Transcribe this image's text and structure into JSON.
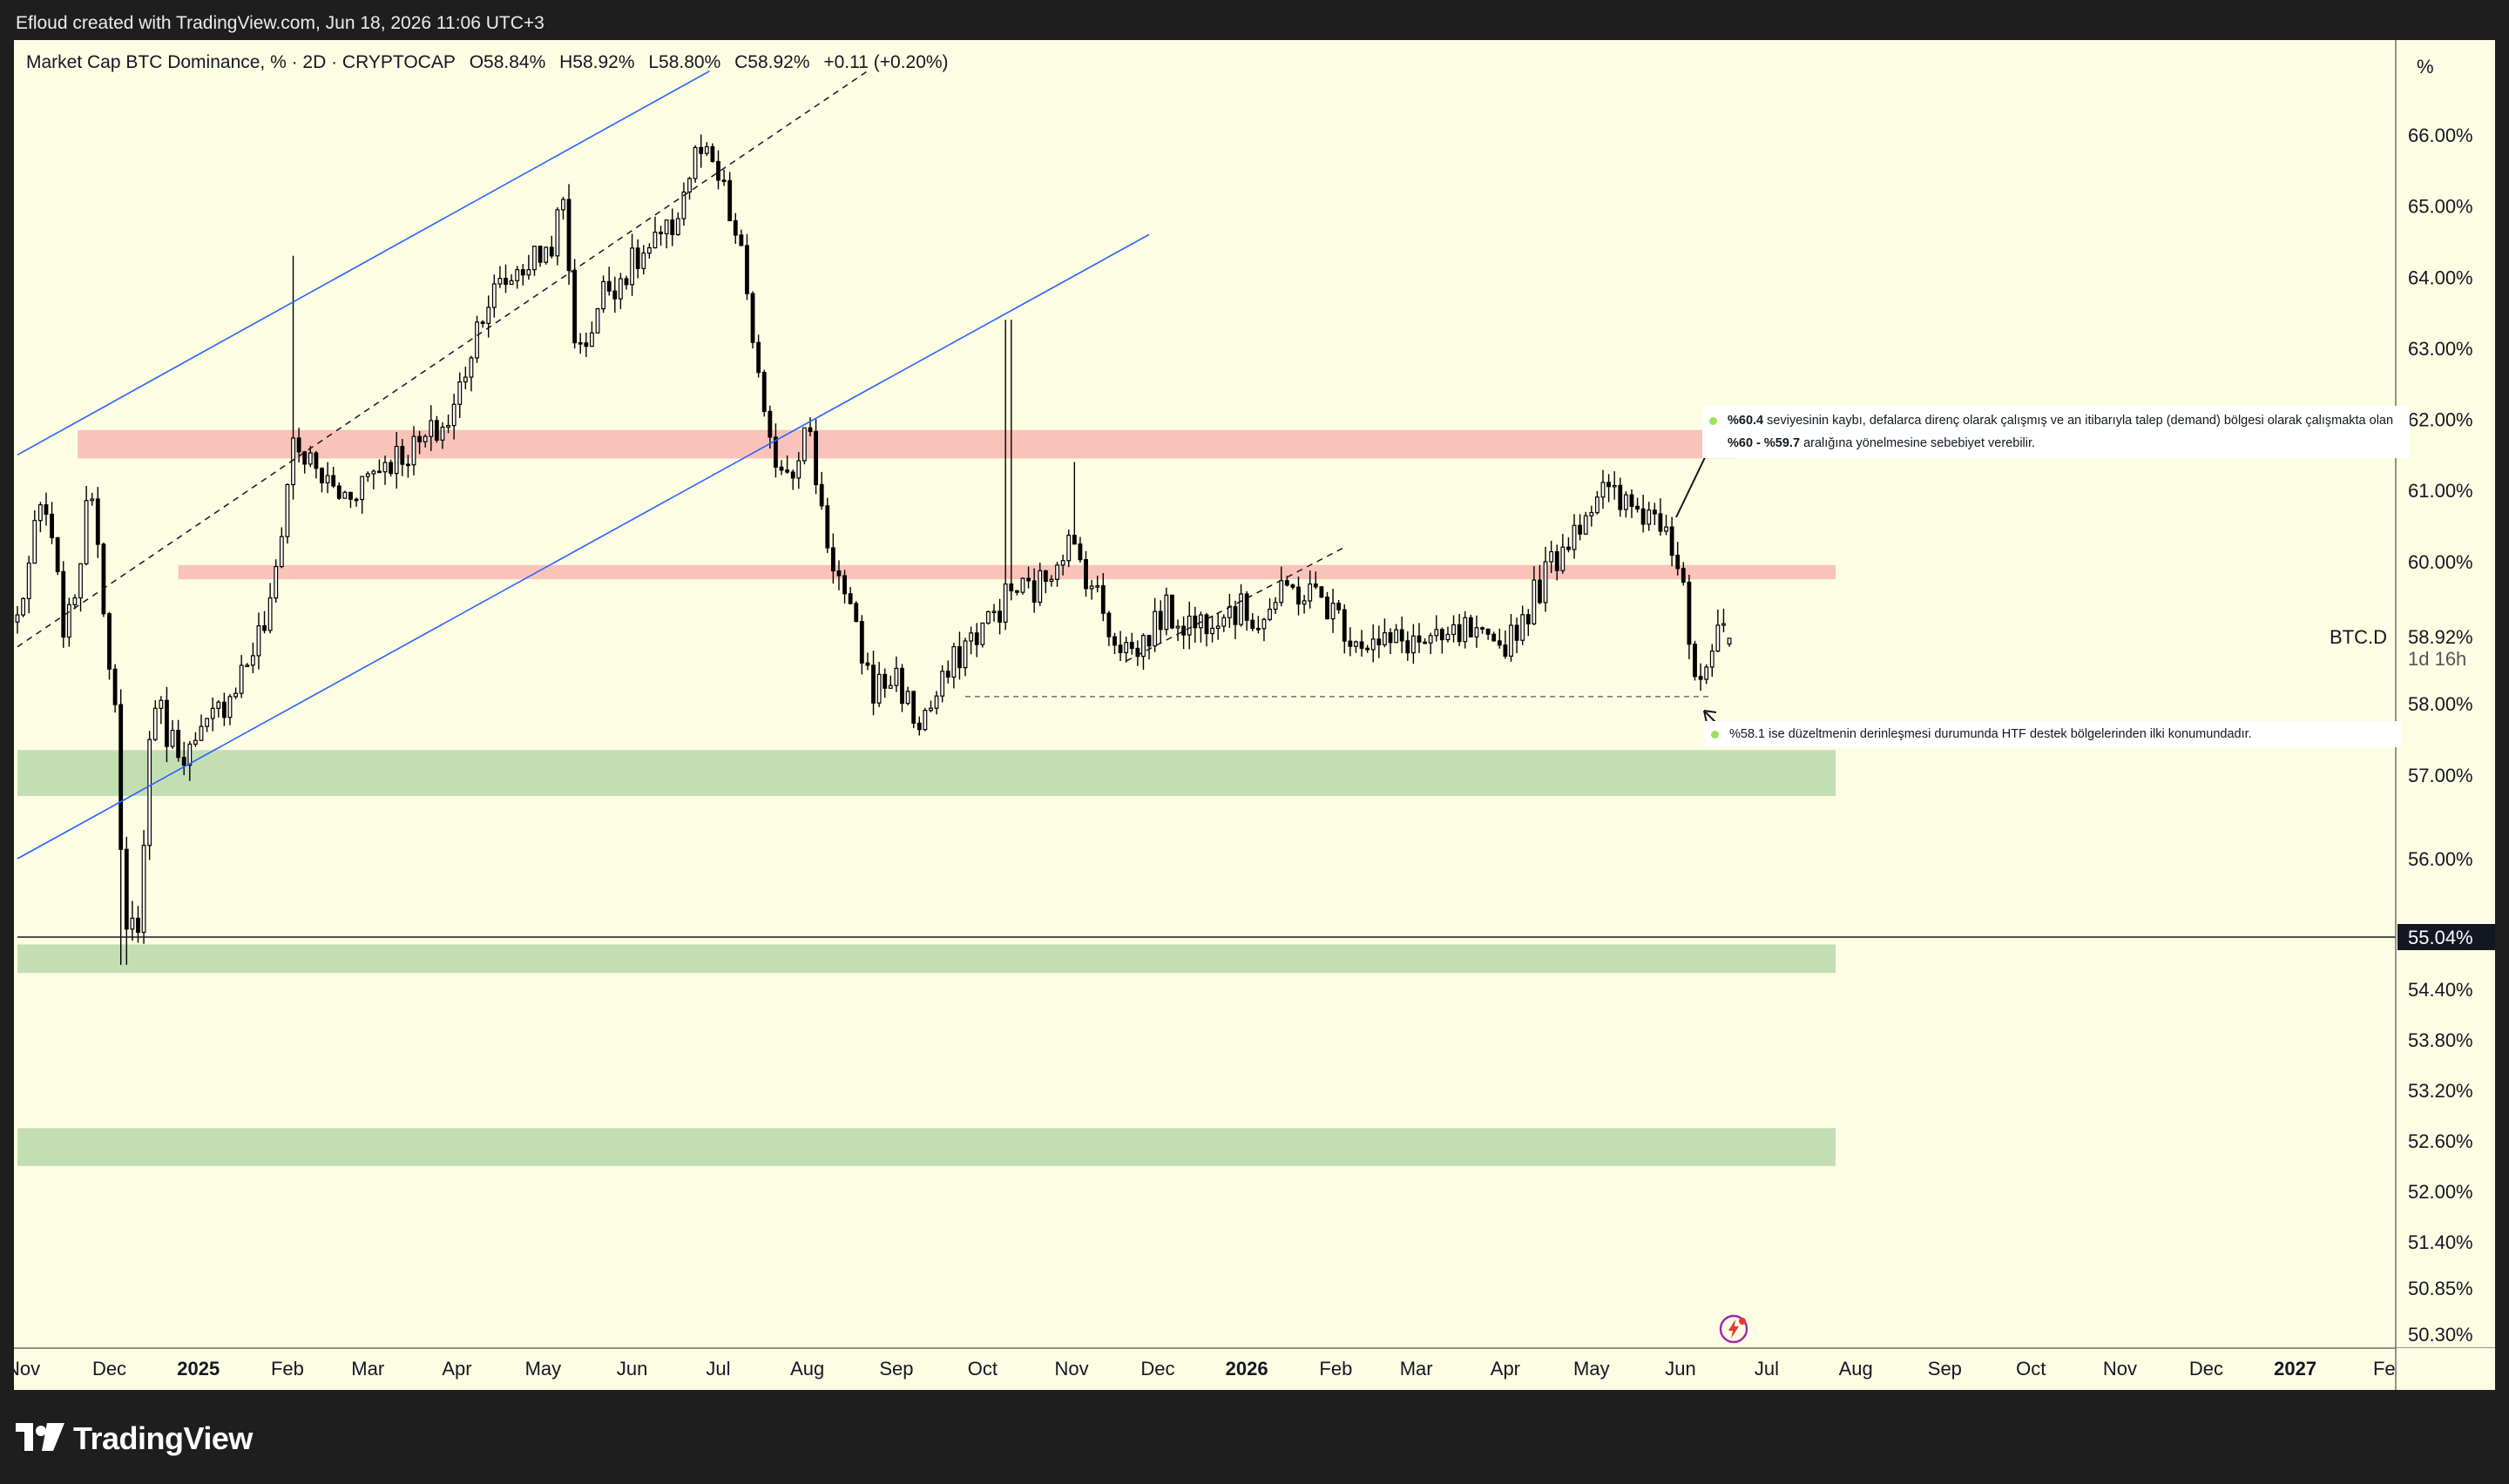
{
  "header": {
    "attribution": "Efloud created with TradingView.com, Jun 18, 2026 11:06 UTC+3"
  },
  "legend": {
    "symbol": "Market Cap BTC Dominance, % · 2D · CRYPTOCAP",
    "open": "O58.84%",
    "high": "H58.92%",
    "low": "L58.80%",
    "close": "C58.92%",
    "change": "+0.11 (+0.20%)"
  },
  "price_scale": {
    "unit": "%",
    "ticks": [
      "66.00%",
      "65.00%",
      "64.00%",
      "63.00%",
      "62.00%",
      "61.00%",
      "60.00%",
      "58.00%",
      "57.00%",
      "56.00%",
      "54.40%",
      "53.80%",
      "53.20%",
      "52.60%",
      "52.00%",
      "51.40%",
      "50.85%",
      "50.30%"
    ],
    "last_price": "58.92%",
    "symbol_tag": "BTC.D",
    "countdown": "1d 16h",
    "crosshair_price": "55.04%"
  },
  "time_axis": {
    "labels": [
      "Nov",
      "Dec",
      "2025",
      "Feb",
      "Mar",
      "Apr",
      "May",
      "Jun",
      "Jul",
      "Aug",
      "Sep",
      "Oct",
      "Nov",
      "Dec",
      "2026",
      "Feb",
      "Mar",
      "Apr",
      "May",
      "Jun",
      "Jul",
      "Aug",
      "Sep",
      "Oct",
      "Nov",
      "Dec",
      "2027",
      "Fe"
    ]
  },
  "annotations": {
    "note_top_line1_bold": "%60.4",
    "note_top_line1": "seviyesinin kaybı, defalarca direnç olarak çalışmış ve an itibarıyla talep (demand) bölgesi olarak çalışmakta olan",
    "note_top_line2_bold": "%60 - %59.7",
    "note_top_line2": "aralığına yönelmesine sebebiyet verebilir.",
    "note_bottom": "%58.1 ise düzeltmenin derinleşmesi durumunda HTF destek bölgelerinden ilki konumundadır."
  },
  "brand": {
    "name": "TradingView"
  },
  "colors": {
    "background": "#fdfde4",
    "resistance_zone": "#f8b4ae",
    "support_zone": "#b5d6a7",
    "channel": "#2962ff",
    "candle": "#000000",
    "note_dot": "#9be25a"
  },
  "chart_data": {
    "type": "candlestick",
    "title": "Market Cap BTC Dominance, % · 2D · CRYPTOCAP",
    "ylabel": "%",
    "ylim": [
      49.8,
      67.0
    ],
    "x_range": [
      "2024-10-30",
      "2027-02-05"
    ],
    "last": {
      "open": 58.84,
      "high": 58.92,
      "low": 58.8,
      "close": 58.92
    },
    "price_path": [
      [
        "2024-10-30",
        59.2
      ],
      [
        "2024-11-08",
        60.9
      ],
      [
        "2024-11-16",
        58.9
      ],
      [
        "2024-11-25",
        61.1
      ],
      [
        "2024-12-03",
        57.9
      ],
      [
        "2024-12-06",
        54.9
      ],
      [
        "2024-12-12",
        55.4
      ],
      [
        "2024-12-16",
        58.2
      ],
      [
        "2024-12-22",
        57.5
      ],
      [
        "2024-12-30",
        57.3
      ],
      [
        "2025-01-08",
        57.9
      ],
      [
        "2025-01-18",
        58.6
      ],
      [
        "2025-01-26",
        59.3
      ],
      [
        "2025-02-03",
        61.7
      ],
      [
        "2025-02-10",
        61.3
      ],
      [
        "2025-02-20",
        60.9
      ],
      [
        "2025-03-06",
        61.4
      ],
      [
        "2025-03-18",
        61.6
      ],
      [
        "2025-03-30",
        62.0
      ],
      [
        "2025-04-10",
        63.6
      ],
      [
        "2025-04-22",
        64.1
      ],
      [
        "2025-05-03",
        64.4
      ],
      [
        "2025-05-08",
        65.0
      ],
      [
        "2025-05-13",
        62.8
      ],
      [
        "2025-05-22",
        63.8
      ],
      [
        "2025-06-02",
        64.2
      ],
      [
        "2025-06-14",
        64.6
      ],
      [
        "2025-06-24",
        65.8
      ],
      [
        "2025-07-02",
        65.3
      ],
      [
        "2025-07-10",
        64.1
      ],
      [
        "2025-07-18",
        61.6
      ],
      [
        "2025-07-26",
        61.3
      ],
      [
        "2025-08-01",
        61.9
      ],
      [
        "2025-08-08",
        60.3
      ],
      [
        "2025-08-16",
        59.2
      ],
      [
        "2025-08-24",
        58.2
      ],
      [
        "2025-09-01",
        58.4
      ],
      [
        "2025-09-08",
        57.7
      ],
      [
        "2025-09-14",
        58.0
      ],
      [
        "2025-09-24",
        58.8
      ],
      [
        "2025-10-04",
        59.2
      ],
      [
        "2025-10-11",
        59.6
      ],
      [
        "2025-10-20",
        59.6
      ],
      [
        "2025-10-30",
        60.3
      ],
      [
        "2025-11-07",
        59.8
      ],
      [
        "2025-11-15",
        59.0
      ],
      [
        "2025-11-23",
        58.7
      ],
      [
        "2025-12-03",
        59.3
      ],
      [
        "2025-12-14",
        59.1
      ],
      [
        "2025-12-24",
        59.4
      ],
      [
        "2026-01-05",
        59.2
      ],
      [
        "2026-01-16",
        59.6
      ],
      [
        "2026-01-27",
        59.5
      ],
      [
        "2026-02-06",
        59.0
      ],
      [
        "2026-02-16",
        58.8
      ],
      [
        "2026-02-26",
        58.9
      ],
      [
        "2026-03-08",
        58.8
      ],
      [
        "2026-03-18",
        59.0
      ],
      [
        "2026-03-28",
        58.7
      ],
      [
        "2026-04-07",
        59.2
      ],
      [
        "2026-04-16",
        59.9
      ],
      [
        "2026-04-25",
        60.5
      ],
      [
        "2026-05-04",
        61.0
      ],
      [
        "2026-05-11",
        60.8
      ],
      [
        "2026-05-20",
        60.7
      ],
      [
        "2026-05-27",
        60.6
      ],
      [
        "2026-06-02",
        59.8
      ],
      [
        "2026-06-05",
        58.5
      ],
      [
        "2026-06-08",
        58.1
      ],
      [
        "2026-06-10",
        58.5
      ],
      [
        "2026-06-14",
        58.9
      ],
      [
        "2026-06-18",
        58.92
      ]
    ],
    "spikes": [
      {
        "date": "2025-02-03",
        "high": 64.3
      },
      {
        "date": "2025-10-10",
        "high": 63.4
      },
      {
        "date": "2025-11-02",
        "high": 61.4
      },
      {
        "date": "2024-12-06",
        "low": 54.7
      }
    ],
    "zones": [
      {
        "kind": "resistance",
        "from": "2024-11-20",
        "to": "2026-06-20",
        "low": 61.45,
        "high": 61.85
      },
      {
        "kind": "resistance",
        "from": "2024-12-25",
        "to": "2026-07-25",
        "low": 59.75,
        "high": 59.95
      },
      {
        "kind": "support",
        "from": "2024-10-30",
        "to": "2026-07-25",
        "low": 56.75,
        "high": 57.35
      },
      {
        "kind": "support",
        "from": "2024-10-30",
        "to": "2026-07-25",
        "low": 54.6,
        "high": 54.95
      },
      {
        "kind": "support",
        "from": "2024-10-30",
        "to": "2026-07-25",
        "low": 52.3,
        "high": 52.75
      }
    ],
    "channel_lines": [
      {
        "style": "solid",
        "from": [
          "2024-10-30",
          61.5
        ],
        "to": [
          "2025-06-28",
          66.9
        ]
      },
      {
        "style": "dashed",
        "from": [
          "2024-10-30",
          58.8
        ],
        "to": [
          "2025-08-22",
          66.9
        ]
      },
      {
        "style": "solid",
        "from": [
          "2024-10-30",
          56.0
        ],
        "to": [
          "2025-11-28",
          64.6
        ]
      },
      {
        "style": "dashed",
        "from": [
          "2025-11-20",
          58.6
        ],
        "to": [
          "2026-02-04",
          60.2
        ]
      }
    ],
    "level_lines": [
      {
        "style": "dashed",
        "value": 58.1,
        "from": "2025-09-25",
        "to": "2026-06-12"
      },
      {
        "style": "solid",
        "value": 55.04,
        "from": "2024-10-30",
        "to": "2027-02-05"
      }
    ]
  }
}
